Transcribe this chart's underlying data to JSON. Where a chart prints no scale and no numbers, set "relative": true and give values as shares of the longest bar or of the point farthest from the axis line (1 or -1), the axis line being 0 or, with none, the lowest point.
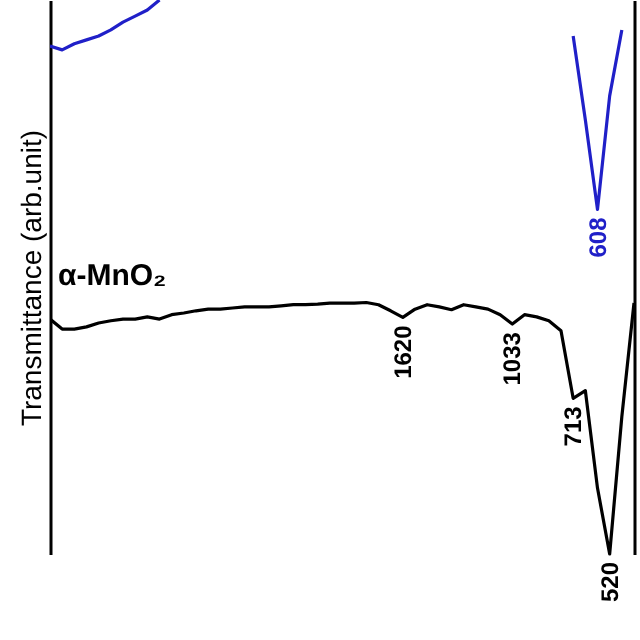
{
  "chart_data": {
    "type": "line",
    "ylabel": "Transmittance (arb.unit)",
    "relative": true,
    "categories": [
      null,
      null,
      null,
      null,
      null,
      null,
      null,
      null,
      null,
      null,
      null,
      null,
      null,
      null,
      null,
      null,
      null,
      null,
      null,
      null,
      null,
      null,
      null,
      null,
      null,
      null,
      null,
      null,
      null,
      null,
      null,
      null,
      null,
      null,
      null,
      null,
      null,
      null,
      null,
      null,
      null,
      null,
      null,
      null,
      null,
      null,
      null,
      null,
      null
    ],
    "series": [
      {
        "name": "α-MnO₂",
        "color": "#000000",
        "values": [
          0.424,
          0.406,
          0.406,
          0.41,
          0.417,
          0.421,
          0.424,
          0.424,
          0.428,
          0.424,
          0.432,
          0.435,
          0.439,
          0.442,
          0.442,
          0.444,
          0.446,
          0.446,
          0.446,
          0.448,
          0.45,
          0.45,
          0.451,
          0.453,
          0.453,
          0.453,
          0.454,
          0.45,
          0.439,
          0.427,
          0.442,
          0.45,
          0.446,
          0.441,
          0.45,
          0.446,
          0.442,
          0.432,
          0.415,
          0.432,
          0.428,
          0.421,
          0.403,
          0.281,
          0.295,
          0.119,
          0,
          0.248,
          0.453
        ]
      },
      {
        "color": "#2020c8",
        "values": [
          0.917,
          0.91,
          0.921,
          0.928,
          0.935,
          0.946,
          0.96,
          0.971,
          0.982,
          1,
          null,
          null,
          null,
          null,
          null,
          null,
          null,
          null,
          null,
          null,
          null,
          null,
          null,
          null,
          null,
          null,
          null,
          null,
          null,
          null,
          null,
          null,
          null,
          null,
          null,
          null,
          null,
          null,
          null,
          null,
          null,
          null,
          null,
          0.935,
          0.784,
          0.622,
          0.827,
          0.946,
          null
        ]
      }
    ],
    "annotations": [
      {
        "text": "1620",
        "y": 0.427
      },
      {
        "text": "1033",
        "y": 0.415
      },
      {
        "text": "713",
        "y": 0.281
      },
      {
        "text": "520",
        "y": 0
      },
      {
        "text": "608",
        "y": 0.622
      }
    ]
  }
}
